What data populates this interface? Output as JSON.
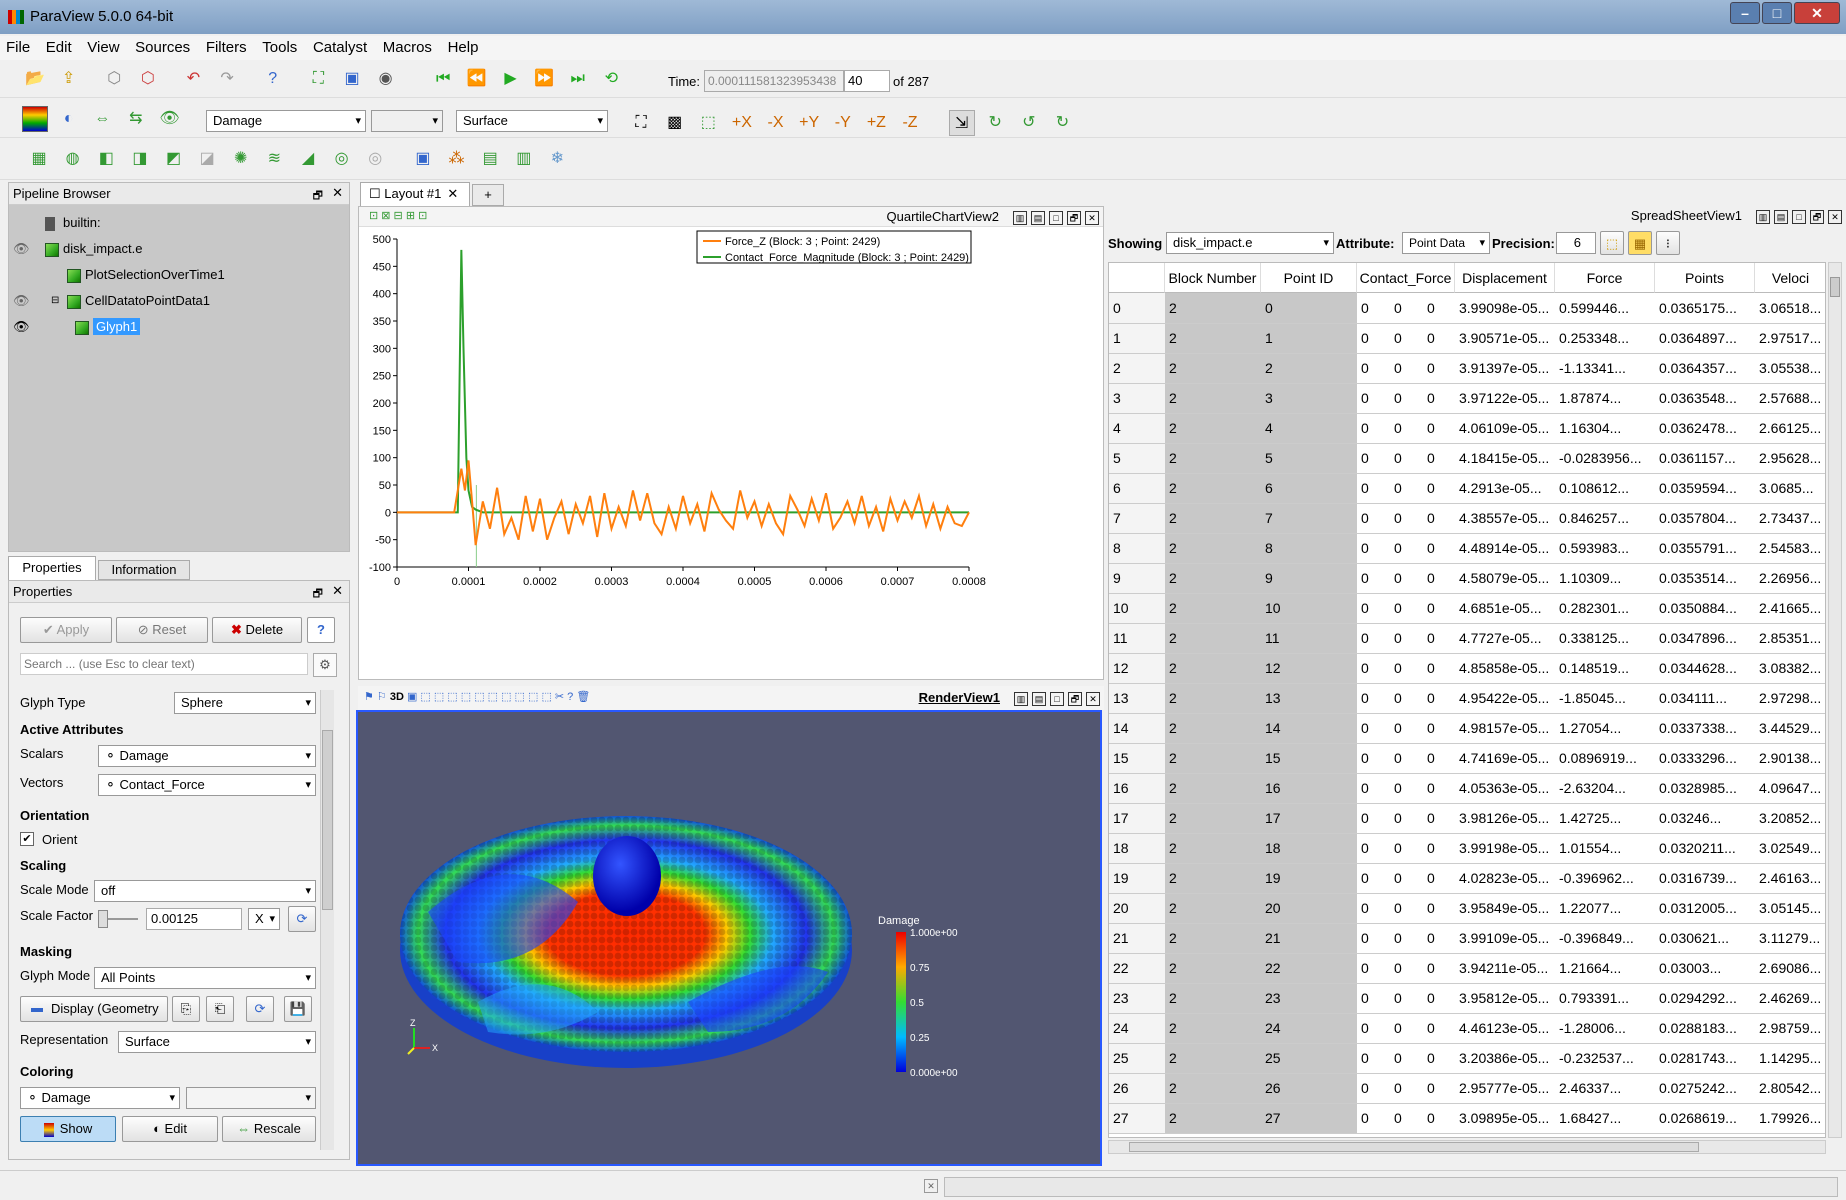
{
  "app": {
    "title": "ParaView 5.0.0 64-bit"
  },
  "menu": [
    "File",
    "Edit",
    "View",
    "Sources",
    "Filters",
    "Tools",
    "Catalyst",
    "Macros",
    "Help"
  ],
  "time": {
    "label": "Time:",
    "value": "0.000111581323953438",
    "step": "40",
    "of": "of 287"
  },
  "toolbar2": {
    "color_by": "Damage",
    "component": "",
    "representation": "Surface"
  },
  "pipeline": {
    "title": "Pipeline Browser",
    "items": [
      "builtin:",
      "disk_impact.e",
      "PlotSelectionOverTime1",
      "CellDatatoPointData1",
      "Glyph1"
    ]
  },
  "tabs": {
    "properties": "Properties",
    "information": "Information"
  },
  "properties": {
    "title": "Properties",
    "apply": "Apply",
    "reset": "Reset",
    "delete": "Delete",
    "help": "?",
    "search_placeholder": "Search ... (use Esc to clear text)",
    "glyph_type_label": "Glyph Type",
    "glyph_type": "Sphere",
    "active_attributes": "Active Attributes",
    "scalars_label": "Scalars",
    "scalars": "Damage",
    "vectors_label": "Vectors",
    "vectors": "Contact_Force",
    "orientation": "Orientation",
    "orient": "Orient",
    "scaling": "Scaling",
    "scale_mode_label": "Scale Mode",
    "scale_mode": "off",
    "scale_factor_label": "Scale Factor",
    "scale_factor": "0.00125",
    "scale_axis": "X",
    "masking": "Masking",
    "glyph_mode_label": "Glyph Mode",
    "glyph_mode": "All Points",
    "display": "Display (Geometry",
    "representation_label": "Representation",
    "representation": "Surface",
    "coloring": "Coloring",
    "color_by": "Damage",
    "show": "Show",
    "edit": "Edit",
    "rescale": "Rescale"
  },
  "layout": {
    "tab": "Layout #1",
    "plus": "+"
  },
  "chart": {
    "title": "QuartileChartView2",
    "legend": [
      "Force_Z (Block: 3 ; Point: 2429)",
      "Contact_Force_Magnitude (Block: 3 ; Point: 2429)"
    ]
  },
  "chart_data": {
    "type": "line",
    "xlim": [
      0,
      0.0008
    ],
    "ylim": [
      -100,
      500
    ],
    "xticks": [
      "0",
      "0.0001",
      "0.0002",
      "0.0003",
      "0.0004",
      "0.0005",
      "0.0006",
      "0.0007",
      "0.0008"
    ],
    "yticks": [
      "500",
      "450",
      "400",
      "350",
      "300",
      "250",
      "200",
      "150",
      "100",
      "50",
      "0",
      "-50",
      "-100"
    ],
    "series": [
      {
        "name": "Force_Z (Block: 3 ; Point: 2429)",
        "color": "#ff7f0e",
        "x": [
          0,
          8e-05,
          9e-05,
          9.5e-05,
          0.0001,
          0.000105,
          0.00011,
          0.000115,
          0.00012,
          0.00013,
          0.00014,
          0.00015,
          0.00016,
          0.00017,
          0.00018,
          0.00019,
          0.0002,
          0.00021,
          0.00022,
          0.00023,
          0.00024,
          0.00025,
          0.00026,
          0.00027,
          0.00028,
          0.00029,
          0.0003,
          0.00031,
          0.00032,
          0.00033,
          0.00034,
          0.00035,
          0.00036,
          0.00037,
          0.00038,
          0.00039,
          0.0004,
          0.00041,
          0.00042,
          0.00043,
          0.00044,
          0.00045,
          0.00046,
          0.00047,
          0.00048,
          0.00049,
          0.0005,
          0.00051,
          0.00052,
          0.00053,
          0.00054,
          0.00055,
          0.00056,
          0.00057,
          0.00058,
          0.00059,
          0.0006,
          0.00061,
          0.00062,
          0.00063,
          0.00064,
          0.00065,
          0.00066,
          0.00067,
          0.00068,
          0.00069,
          0.0007,
          0.00071,
          0.00072,
          0.00073,
          0.00074,
          0.00075,
          0.00076,
          0.00077,
          0.00078,
          0.00079,
          0.0008
        ],
        "y": [
          0,
          0,
          80,
          40,
          95,
          20,
          -60,
          -20,
          20,
          -30,
          45,
          -40,
          -10,
          -50,
          30,
          -35,
          25,
          -50,
          -10,
          20,
          -40,
          15,
          -20,
          30,
          -45,
          35,
          -30,
          10,
          -25,
          40,
          -15,
          35,
          -20,
          -40,
          10,
          -30,
          30,
          -20,
          15,
          -35,
          35,
          5,
          -15,
          -30,
          40,
          -10,
          20,
          -25,
          15,
          -20,
          -40,
          30,
          5,
          -25,
          25,
          -15,
          35,
          -30,
          -10,
          20,
          -20,
          30,
          -25,
          10,
          -35,
          25,
          -15,
          20,
          -10,
          30,
          -25,
          15,
          -30,
          10,
          -20,
          -25,
          0
        ]
      },
      {
        "name": "Contact_Force_Magnitude (Block: 3 ; Point: 2429)",
        "color": "#2ca02c",
        "x": [
          0,
          8.5e-05,
          9e-05,
          9.3e-05,
          9.7e-05,
          0.0001,
          0.000105,
          0.00011,
          0.00012,
          0.0008
        ],
        "y": [
          0,
          0,
          480,
          300,
          100,
          40,
          10,
          5,
          0,
          0
        ]
      }
    ]
  },
  "render": {
    "title": "RenderView1",
    "bar_title": "Damage",
    "bar_labels": [
      "1.000e+00",
      "0.75",
      "0.5",
      "0.25",
      "0.000e+00"
    ],
    "axis_z": "Z",
    "axis_x": "X"
  },
  "spreadsheet": {
    "title": "SpreadSheetView1",
    "showing_label": "Showing",
    "showing": "disk_impact.e",
    "attribute_label": "Attribute:",
    "attribute": "Point Data",
    "precision_label": "Precision:",
    "precision": "6",
    "columns": [
      "Block Number",
      "Point ID",
      "Contact_Force",
      "Displacement",
      "Force",
      "Points",
      "Veloci"
    ],
    "rows": [
      [
        "0",
        "2",
        "0",
        "0",
        "0",
        "0",
        "3.99098e-05...",
        "0.599446...",
        "0.0365175...",
        "3.06518..."
      ],
      [
        "1",
        "2",
        "1",
        "0",
        "0",
        "0",
        "3.90571e-05...",
        "0.253348...",
        "0.0364897...",
        "2.97517..."
      ],
      [
        "2",
        "2",
        "2",
        "0",
        "0",
        "0",
        "3.91397e-05...",
        "-1.13341...",
        "0.0364357...",
        "3.05538..."
      ],
      [
        "3",
        "2",
        "3",
        "0",
        "0",
        "0",
        "3.97122e-05...",
        "1.87874...",
        "0.0363548...",
        "2.57688..."
      ],
      [
        "4",
        "2",
        "4",
        "0",
        "0",
        "0",
        "4.06109e-05...",
        "1.16304...",
        "0.0362478...",
        "2.66125..."
      ],
      [
        "5",
        "2",
        "5",
        "0",
        "0",
        "0",
        "4.18415e-05...",
        "-0.0283956...",
        "0.0361157...",
        "2.95628..."
      ],
      [
        "6",
        "2",
        "6",
        "0",
        "0",
        "0",
        "4.2913e-05...",
        "0.108612...",
        "0.0359594...",
        "3.0685..."
      ],
      [
        "7",
        "2",
        "7",
        "0",
        "0",
        "0",
        "4.38557e-05...",
        "0.846257...",
        "0.0357804...",
        "2.73437..."
      ],
      [
        "8",
        "2",
        "8",
        "0",
        "0",
        "0",
        "4.48914e-05...",
        "0.593983...",
        "0.0355791...",
        "2.54583..."
      ],
      [
        "9",
        "2",
        "9",
        "0",
        "0",
        "0",
        "4.58079e-05...",
        "1.10309...",
        "0.0353514...",
        "2.26956..."
      ],
      [
        "10",
        "2",
        "10",
        "0",
        "0",
        "0",
        "4.6851e-05...",
        "0.282301...",
        "0.0350884...",
        "2.41665..."
      ],
      [
        "11",
        "2",
        "11",
        "0",
        "0",
        "0",
        "4.7727e-05...",
        "0.338125...",
        "0.0347896...",
        "2.85351..."
      ],
      [
        "12",
        "2",
        "12",
        "0",
        "0",
        "0",
        "4.85858e-05...",
        "0.148519...",
        "0.0344628...",
        "3.08382..."
      ],
      [
        "13",
        "2",
        "13",
        "0",
        "0",
        "0",
        "4.95422e-05...",
        "-1.85045...",
        "0.034111...",
        "2.97298..."
      ],
      [
        "14",
        "2",
        "14",
        "0",
        "0",
        "0",
        "4.98157e-05...",
        "1.27054...",
        "0.0337338...",
        "3.44529..."
      ],
      [
        "15",
        "2",
        "15",
        "0",
        "0",
        "0",
        "4.74169e-05...",
        "0.0896919...",
        "0.0333296...",
        "2.90138..."
      ],
      [
        "16",
        "2",
        "16",
        "0",
        "0",
        "0",
        "4.05363e-05...",
        "-2.63204...",
        "0.0328985...",
        "4.09647..."
      ],
      [
        "17",
        "2",
        "17",
        "0",
        "0",
        "0",
        "3.98126e-05...",
        "1.42725...",
        "0.03246...",
        "3.20852..."
      ],
      [
        "18",
        "2",
        "18",
        "0",
        "0",
        "0",
        "3.99198e-05...",
        "1.01554...",
        "0.0320211...",
        "3.02549..."
      ],
      [
        "19",
        "2",
        "19",
        "0",
        "0",
        "0",
        "4.02823e-05...",
        "-0.396962...",
        "0.0316739...",
        "2.46163..."
      ],
      [
        "20",
        "2",
        "20",
        "0",
        "0",
        "0",
        "3.95849e-05...",
        "1.22077...",
        "0.0312005...",
        "3.05145..."
      ],
      [
        "21",
        "2",
        "21",
        "0",
        "0",
        "0",
        "3.99109e-05...",
        "-0.396849...",
        "0.030621...",
        "3.11279..."
      ],
      [
        "22",
        "2",
        "22",
        "0",
        "0",
        "0",
        "3.94211e-05...",
        "1.21664...",
        "0.03003...",
        "2.69086..."
      ],
      [
        "23",
        "2",
        "23",
        "0",
        "0",
        "0",
        "3.95812e-05...",
        "0.793391...",
        "0.0294292...",
        "2.46269..."
      ],
      [
        "24",
        "2",
        "24",
        "0",
        "0",
        "0",
        "4.46123e-05...",
        "-1.28006...",
        "0.0288183...",
        "2.98759..."
      ],
      [
        "25",
        "2",
        "25",
        "0",
        "0",
        "0",
        "3.20386e-05...",
        "-0.232537...",
        "0.0281743...",
        "1.14295..."
      ],
      [
        "26",
        "2",
        "26",
        "0",
        "0",
        "0",
        "2.95777e-05...",
        "2.46337...",
        "0.0275242...",
        "2.80542..."
      ],
      [
        "27",
        "2",
        "27",
        "0",
        "0",
        "0",
        "3.09895e-05...",
        "1.68427...",
        "0.0268619...",
        "1.79926..."
      ]
    ]
  }
}
